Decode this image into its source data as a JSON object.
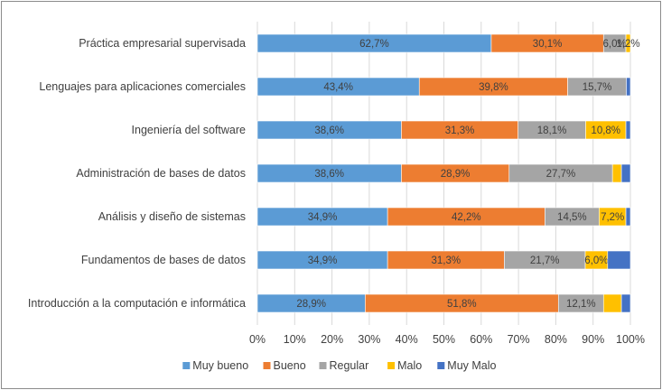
{
  "chart_data": {
    "type": "bar",
    "orientation": "horizontal",
    "stacked": "percent",
    "categories": [
      "Práctica empresarial supervisada",
      "Lenguajes para aplicaciones comerciales",
      "Ingeniería del software",
      "Administración de bases de datos",
      "Análisis y diseño de sistemas",
      "Fundamentos de bases de datos",
      "Introducción a la computación e informática"
    ],
    "series": [
      {
        "name": "Muy bueno",
        "color": "#5b9bd5",
        "values": [
          62.7,
          43.4,
          38.6,
          38.6,
          34.9,
          34.9,
          28.9
        ],
        "labels": [
          "62,7%",
          "43,4%",
          "38,6%",
          "38,6%",
          "34,9%",
          "34,9%",
          "28,9%"
        ]
      },
      {
        "name": "Bueno",
        "color": "#ed7d31",
        "values": [
          30.1,
          39.8,
          31.3,
          28.9,
          42.2,
          31.3,
          51.8
        ],
        "labels": [
          "30,1%",
          "39,8%",
          "31,3%",
          "28,9%",
          "42,2%",
          "31,3%",
          "51,8%"
        ]
      },
      {
        "name": "Regular",
        "color": "#a5a5a5",
        "values": [
          6.0,
          15.7,
          18.1,
          27.7,
          14.5,
          21.7,
          12.1
        ],
        "labels": [
          "6,0%",
          "15,7%",
          "18,1%",
          "27,7%",
          "14,5%",
          "21,7%",
          "12,1%"
        ]
      },
      {
        "name": "Malo",
        "color": "#ffc000",
        "values": [
          1.2,
          0.0,
          10.8,
          2.4,
          7.2,
          6.0,
          4.8
        ],
        "labels": [
          "1,2%",
          "",
          "10,8%",
          "",
          "7,2%",
          "6,0%",
          ""
        ]
      },
      {
        "name": "Muy Malo",
        "color": "#4472c4",
        "values": [
          0.0,
          1.1,
          1.2,
          2.4,
          1.2,
          6.1,
          2.4
        ],
        "labels": [
          "",
          "",
          "",
          "",
          "",
          "",
          ""
        ]
      }
    ],
    "xlim": [
      0,
      100
    ],
    "xticks": [
      "0%",
      "10%",
      "20%",
      "30%",
      "40%",
      "50%",
      "60%",
      "70%",
      "80%",
      "90%",
      "100%"
    ],
    "grid": true,
    "legend": "bottom"
  }
}
